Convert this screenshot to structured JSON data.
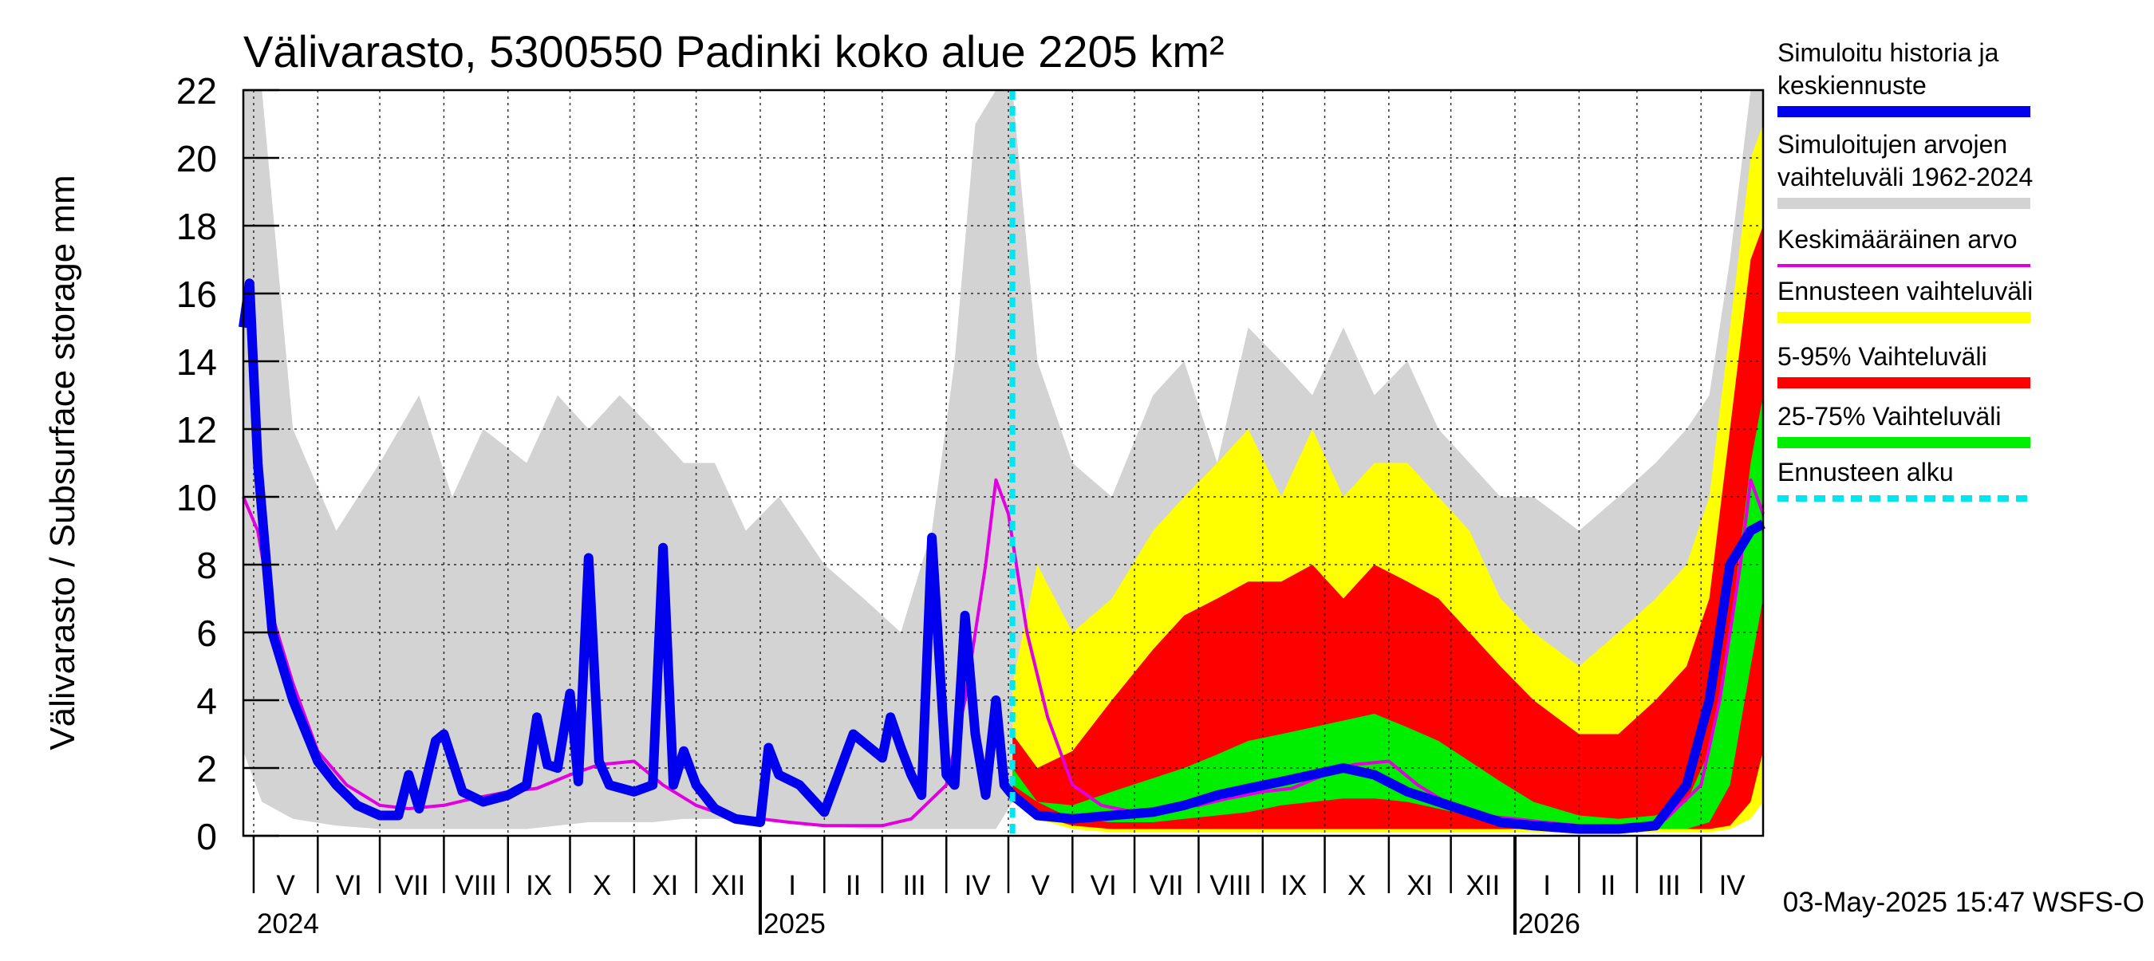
{
  "chart_data": {
    "type": "area",
    "title": "Välivarasto, 5300550 Padinki koko alue 2205 km²",
    "ylabel": "Välivarasto / Subsurface storage  mm",
    "ylim": [
      0,
      22
    ],
    "y_ticks": [
      "0",
      "2",
      "4",
      "6",
      "8",
      "10",
      "12",
      "14",
      "16",
      "18",
      "20",
      "22"
    ],
    "x_start": "2024-04-26",
    "x_end": "2026-05-01",
    "forecast_start": "2025-05-03",
    "grid": true,
    "months": [
      {
        "label": "V",
        "start": "2024-05-01"
      },
      {
        "label": "VI",
        "start": "2024-06-01"
      },
      {
        "label": "VII",
        "start": "2024-07-01"
      },
      {
        "label": "VIII",
        "start": "2024-08-01"
      },
      {
        "label": "IX",
        "start": "2024-09-01"
      },
      {
        "label": "X",
        "start": "2024-10-01"
      },
      {
        "label": "XI",
        "start": "2024-11-01"
      },
      {
        "label": "XII",
        "start": "2024-12-01"
      },
      {
        "label": "I",
        "start": "2025-01-01"
      },
      {
        "label": "II",
        "start": "2025-02-01"
      },
      {
        "label": "III",
        "start": "2025-03-01"
      },
      {
        "label": "IV",
        "start": "2025-04-01"
      },
      {
        "label": "V",
        "start": "2025-05-01"
      },
      {
        "label": "VI",
        "start": "2025-06-01"
      },
      {
        "label": "VII",
        "start": "2025-07-01"
      },
      {
        "label": "VIII",
        "start": "2025-08-01"
      },
      {
        "label": "IX",
        "start": "2025-09-01"
      },
      {
        "label": "X",
        "start": "2025-10-01"
      },
      {
        "label": "XI",
        "start": "2025-11-01"
      },
      {
        "label": "XII",
        "start": "2025-12-01"
      },
      {
        "label": "I",
        "start": "2026-01-01"
      },
      {
        "label": "II",
        "start": "2026-02-01"
      },
      {
        "label": "III",
        "start": "2026-03-01"
      },
      {
        "label": "IV",
        "start": "2026-04-01"
      }
    ],
    "years": [
      {
        "label": "2024",
        "start": "2024-05-01"
      },
      {
        "label": "2025",
        "start": "2025-01-01"
      },
      {
        "label": "2026",
        "start": "2026-01-01"
      }
    ],
    "legend": [
      {
        "label": "Simuloitu historia ja keskiennuste",
        "color": "#0000ee",
        "style": "thick"
      },
      {
        "label": "Simuloitujen arvojen vaihteluväli 1962-2024",
        "color": "#d3d3d3",
        "style": "thick"
      },
      {
        "label": "Keskimääräinen arvo",
        "color": "#e000e0",
        "style": "thin"
      },
      {
        "label": "Ennusteen vaihteluväli",
        "color": "#ffff00",
        "style": "thick"
      },
      {
        "label": "5-95% Vaihteluväli",
        "color": "#ff0000",
        "style": "thick"
      },
      {
        "label": "25-75% Vaihteluväli",
        "color": "#00ee00",
        "style": "thick"
      },
      {
        "label": "Ennusteen alku",
        "color": "#00e5ee",
        "style": "dashed"
      }
    ],
    "legend_position": "right",
    "footer": "03-May-2025 15:47 WSFS-O",
    "series": [
      {
        "name": "Simuloitujen arvojen vaihteluväli 1962-2024",
        "kind": "band",
        "x": [
          "2024-04-26",
          "2024-05-05",
          "2024-05-20",
          "2024-06-10",
          "2024-07-01",
          "2024-07-20",
          "2024-08-05",
          "2024-08-20",
          "2024-09-10",
          "2024-09-25",
          "2024-10-10",
          "2024-10-25",
          "2024-11-10",
          "2024-11-25",
          "2024-12-10",
          "2024-12-25",
          "2025-01-10",
          "2025-02-01",
          "2025-02-20",
          "2025-03-10",
          "2025-03-25",
          "2025-04-05",
          "2025-04-15",
          "2025-04-25",
          "2025-05-03",
          "2025-05-15",
          "2025-06-01",
          "2025-06-20",
          "2025-07-10",
          "2025-07-25",
          "2025-08-10",
          "2025-08-25",
          "2025-09-10",
          "2025-09-25",
          "2025-10-10",
          "2025-10-25",
          "2025-11-10",
          "2025-11-25",
          "2025-12-10",
          "2025-12-25",
          "2026-01-10",
          "2026-02-01",
          "2026-02-20",
          "2026-03-10",
          "2026-03-25",
          "2026-04-05",
          "2026-04-15",
          "2026-04-25",
          "2026-05-01"
        ],
        "lower": [
          2.5,
          1.0,
          0.5,
          0.3,
          0.2,
          0.2,
          0.2,
          0.2,
          0.2,
          0.3,
          0.4,
          0.4,
          0.4,
          0.5,
          0.5,
          0.5,
          0.4,
          0.3,
          0.2,
          0.2,
          0.2,
          0.2,
          0.2,
          0.2,
          1.0,
          0.5,
          0.3,
          0.2,
          0.2,
          0.2,
          0.2,
          0.2,
          0.2,
          0.3,
          0.4,
          0.4,
          0.4,
          0.5,
          0.5,
          0.5,
          0.4,
          0.3,
          0.2,
          0.2,
          0.2,
          0.2,
          0.3,
          0.8,
          1.5
        ],
        "upper": [
          22,
          22,
          12,
          9,
          11,
          13,
          10,
          12,
          11,
          13,
          12,
          13,
          12,
          11,
          11,
          9,
          10,
          8,
          7,
          6,
          9,
          14,
          21,
          22,
          22,
          14,
          11,
          10,
          13,
          14,
          11,
          15,
          14,
          13,
          15,
          13,
          14,
          12,
          11,
          10,
          10,
          9,
          10,
          11,
          12,
          13,
          17,
          22,
          22
        ]
      },
      {
        "name": "Ennusteen vaihteluväli",
        "kind": "band",
        "x": [
          "2025-05-03",
          "2025-05-15",
          "2025-06-01",
          "2025-06-20",
          "2025-07-10",
          "2025-07-25",
          "2025-08-10",
          "2025-08-25",
          "2025-09-10",
          "2025-09-25",
          "2025-10-10",
          "2025-10-25",
          "2025-11-10",
          "2025-11-25",
          "2025-12-10",
          "2025-12-25",
          "2026-01-10",
          "2026-02-01",
          "2026-02-20",
          "2026-03-10",
          "2026-03-25",
          "2026-04-05",
          "2026-04-15",
          "2026-04-25",
          "2026-05-01"
        ],
        "lower": [
          1.0,
          0.5,
          0.2,
          0.1,
          0.1,
          0.1,
          0.1,
          0.1,
          0.1,
          0.1,
          0.1,
          0.1,
          0.1,
          0.1,
          0.1,
          0.1,
          0.1,
          0.1,
          0.1,
          0.1,
          0.1,
          0.1,
          0.2,
          0.5,
          1.0
        ],
        "upper": [
          4.5,
          8,
          6,
          7,
          9,
          10,
          11,
          12,
          10,
          12,
          10,
          11,
          11,
          10,
          9,
          7,
          6,
          5,
          6,
          7,
          8,
          10,
          15,
          20,
          21
        ]
      },
      {
        "name": "5-95% Vaihteluväli",
        "kind": "band",
        "x": [
          "2025-05-03",
          "2025-05-15",
          "2025-06-01",
          "2025-06-20",
          "2025-07-10",
          "2025-07-25",
          "2025-08-10",
          "2025-08-25",
          "2025-09-10",
          "2025-09-25",
          "2025-10-10",
          "2025-10-25",
          "2025-11-10",
          "2025-11-25",
          "2025-12-10",
          "2025-12-25",
          "2026-01-10",
          "2026-02-01",
          "2026-02-20",
          "2026-03-10",
          "2026-03-25",
          "2026-04-05",
          "2026-04-15",
          "2026-04-25",
          "2026-05-01"
        ],
        "lower": [
          1.0,
          0.6,
          0.3,
          0.2,
          0.2,
          0.2,
          0.2,
          0.2,
          0.2,
          0.2,
          0.2,
          0.2,
          0.2,
          0.2,
          0.2,
          0.2,
          0.2,
          0.2,
          0.2,
          0.2,
          0.2,
          0.2,
          0.3,
          1.0,
          2.5
        ],
        "upper": [
          3.0,
          2.0,
          2.5,
          4.0,
          5.5,
          6.5,
          7.0,
          7.5,
          7.5,
          8.0,
          7.0,
          8.0,
          7.5,
          7.0,
          6.0,
          5.0,
          4.0,
          3.0,
          3.0,
          4.0,
          5.0,
          7.0,
          12,
          17,
          18
        ]
      },
      {
        "name": "25-75% Vaihteluväli",
        "kind": "band",
        "x": [
          "2025-05-03",
          "2025-05-15",
          "2025-06-01",
          "2025-06-20",
          "2025-07-10",
          "2025-07-25",
          "2025-08-10",
          "2025-08-25",
          "2025-09-10",
          "2025-09-25",
          "2025-10-10",
          "2025-10-25",
          "2025-11-10",
          "2025-11-25",
          "2025-12-10",
          "2025-12-25",
          "2026-01-10",
          "2026-02-01",
          "2026-02-20",
          "2026-03-10",
          "2026-03-25",
          "2026-04-05",
          "2026-04-15",
          "2026-04-25",
          "2026-05-01"
        ],
        "lower": [
          1.5,
          1.0,
          0.5,
          0.4,
          0.4,
          0.5,
          0.6,
          0.7,
          0.9,
          1.0,
          1.1,
          1.1,
          1.0,
          0.8,
          0.6,
          0.4,
          0.3,
          0.2,
          0.2,
          0.2,
          0.2,
          0.4,
          1.5,
          5.0,
          7.0
        ],
        "upper": [
          2.0,
          1.0,
          0.9,
          1.3,
          1.7,
          2.0,
          2.4,
          2.8,
          3.0,
          3.2,
          3.4,
          3.6,
          3.2,
          2.8,
          2.2,
          1.6,
          1.0,
          0.6,
          0.5,
          0.6,
          1.0,
          2.5,
          6.0,
          11,
          13
        ]
      },
      {
        "name": "Keskimääräinen arvo",
        "kind": "line",
        "x": [
          "2024-04-26",
          "2024-05-03",
          "2024-05-10",
          "2024-05-20",
          "2024-06-01",
          "2024-06-15",
          "2024-07-01",
          "2024-07-15",
          "2024-08-01",
          "2024-08-15",
          "2024-09-01",
          "2024-09-15",
          "2024-10-01",
          "2024-10-15",
          "2024-11-01",
          "2024-11-15",
          "2024-12-01",
          "2024-12-15",
          "2025-01-01",
          "2025-01-15",
          "2025-02-01",
          "2025-02-15",
          "2025-03-01",
          "2025-03-15",
          "2025-04-01",
          "2025-04-10",
          "2025-04-20",
          "2025-04-25",
          "2025-05-01",
          "2025-05-10",
          "2025-05-20",
          "2025-06-01",
          "2025-06-15",
          "2025-07-01",
          "2025-07-15",
          "2025-08-01",
          "2025-08-15",
          "2025-09-01",
          "2025-09-15",
          "2025-10-01",
          "2025-10-15",
          "2025-11-01",
          "2025-11-15",
          "2025-12-01",
          "2025-12-15",
          "2026-01-01",
          "2026-01-15",
          "2026-02-01",
          "2026-02-15",
          "2026-03-01",
          "2026-03-15",
          "2026-04-01",
          "2026-04-10",
          "2026-04-20",
          "2026-04-25",
          "2026-05-01"
        ],
        "y": [
          10,
          9,
          6.5,
          4.5,
          2.5,
          1.5,
          0.9,
          0.8,
          0.9,
          1.1,
          1.3,
          1.4,
          1.8,
          2.1,
          2.2,
          1.5,
          0.9,
          0.6,
          0.5,
          0.4,
          0.3,
          0.3,
          0.3,
          0.5,
          1.5,
          4,
          8,
          10.5,
          9.5,
          6,
          3.5,
          1.5,
          0.9,
          0.7,
          0.8,
          0.9,
          1.1,
          1.3,
          1.4,
          1.8,
          2.1,
          2.2,
          1.5,
          0.9,
          0.6,
          0.5,
          0.4,
          0.3,
          0.3,
          0.3,
          0.5,
          1.5,
          4,
          8,
          10.5,
          9.5
        ]
      },
      {
        "name": "Simuloitu historia ja keskiennuste",
        "kind": "line",
        "x": [
          "2024-04-26",
          "2024-04-29",
          "2024-05-03",
          "2024-05-10",
          "2024-05-20",
          "2024-06-01",
          "2024-06-10",
          "2024-06-20",
          "2024-07-01",
          "2024-07-10",
          "2024-07-15",
          "2024-07-20",
          "2024-07-28",
          "2024-08-01",
          "2024-08-10",
          "2024-08-20",
          "2024-09-01",
          "2024-09-10",
          "2024-09-15",
          "2024-09-20",
          "2024-09-25",
          "2024-10-01",
          "2024-10-05",
          "2024-10-10",
          "2024-10-15",
          "2024-10-20",
          "2024-11-01",
          "2024-11-10",
          "2024-11-15",
          "2024-11-20",
          "2024-11-25",
          "2024-12-01",
          "2024-12-10",
          "2024-12-20",
          "2025-01-01",
          "2025-01-05",
          "2025-01-10",
          "2025-01-20",
          "2025-02-01",
          "2025-02-15",
          "2025-03-01",
          "2025-03-05",
          "2025-03-10",
          "2025-03-15",
          "2025-03-20",
          "2025-03-25",
          "2025-04-01",
          "2025-04-05",
          "2025-04-10",
          "2025-04-15",
          "2025-04-20",
          "2025-04-25",
          "2025-04-29",
          "2025-05-03",
          "2025-05-15",
          "2025-06-01",
          "2025-06-20",
          "2025-07-10",
          "2025-07-25",
          "2025-08-10",
          "2025-08-25",
          "2025-09-10",
          "2025-09-25",
          "2025-10-10",
          "2025-10-25",
          "2025-11-10",
          "2025-11-25",
          "2025-12-10",
          "2025-12-25",
          "2026-01-10",
          "2026-02-01",
          "2026-02-20",
          "2026-03-10",
          "2026-03-25",
          "2026-04-05",
          "2026-04-15",
          "2026-04-25",
          "2026-05-01"
        ],
        "y": [
          15,
          16.3,
          11,
          6,
          4,
          2.2,
          1.5,
          0.9,
          0.6,
          0.6,
          1.8,
          0.8,
          2.8,
          3,
          1.3,
          1,
          1.2,
          1.5,
          3.5,
          2.1,
          2,
          4.2,
          1.6,
          8.2,
          2.2,
          1.5,
          1.3,
          1.5,
          8.5,
          1.5,
          2.5,
          1.5,
          0.8,
          0.5,
          0.4,
          2.6,
          1.8,
          1.5,
          0.7,
          3,
          2.3,
          3.5,
          2.6,
          1.8,
          1.2,
          8.8,
          1.8,
          1.5,
          6.5,
          3,
          1.2,
          4,
          1.5,
          1.2,
          0.6,
          0.5,
          0.6,
          0.7,
          0.9,
          1.2,
          1.4,
          1.6,
          1.8,
          2.0,
          1.8,
          1.3,
          1.0,
          0.7,
          0.4,
          0.3,
          0.2,
          0.2,
          0.3,
          1.5,
          4,
          8,
          9,
          9.2
        ]
      }
    ]
  }
}
